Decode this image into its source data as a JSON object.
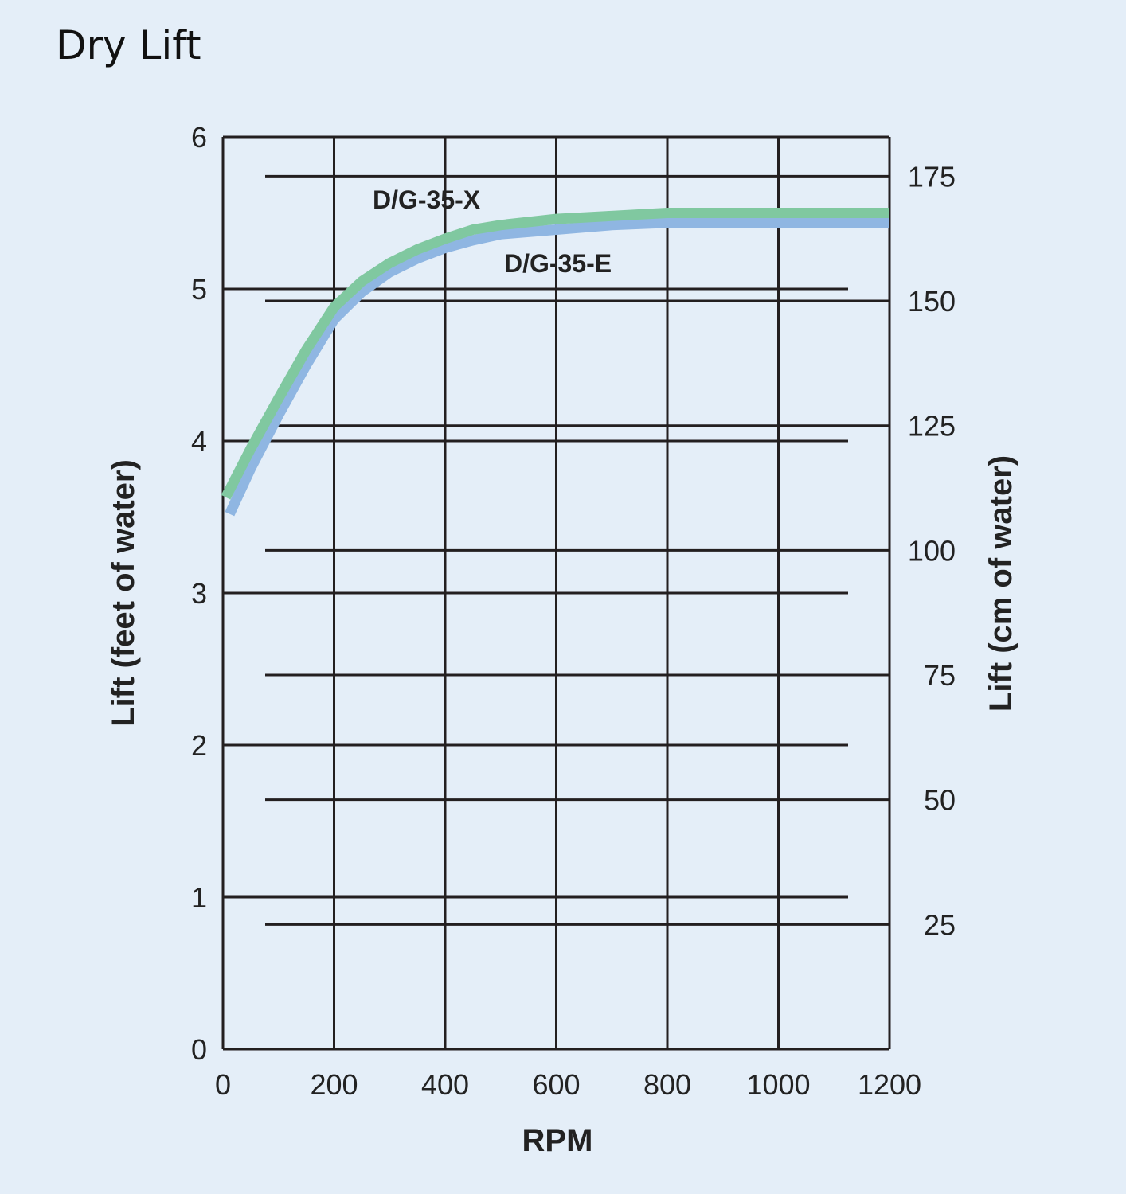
{
  "chart_data": {
    "type": "line",
    "title": "Dry Lift",
    "xlabel": "RPM",
    "ylabel": "Lift (feet of water)",
    "y2label": "Lift (cm of water)",
    "xlim": [
      0,
      1200
    ],
    "ylim": [
      0,
      6
    ],
    "y2lim": [
      0,
      182.88
    ],
    "xticks": [
      "0",
      "200",
      "400",
      "600",
      "800",
      "1000",
      "1200"
    ],
    "yticks": [
      "0",
      "1",
      "2",
      "3",
      "4",
      "5",
      "6"
    ],
    "y2ticks": [
      "25",
      "50",
      "75",
      "100",
      "125",
      "150",
      "175"
    ],
    "grid": true,
    "series": [
      {
        "name": "D/G-35-X",
        "color": "#80c8a0",
        "x": [
          5,
          50,
          100,
          150,
          200,
          250,
          300,
          350,
          400,
          450,
          500,
          600,
          700,
          800,
          1200
        ],
        "y": [
          3.63,
          3.95,
          4.28,
          4.6,
          4.88,
          5.05,
          5.17,
          5.26,
          5.33,
          5.39,
          5.42,
          5.46,
          5.48,
          5.5,
          5.5
        ]
      },
      {
        "name": "D/G-35-E",
        "color": "#8fb6e2",
        "x": [
          12,
          50,
          100,
          150,
          200,
          250,
          300,
          350,
          400,
          450,
          500,
          600,
          700,
          800,
          1200
        ],
        "y": [
          3.52,
          3.82,
          4.17,
          4.5,
          4.8,
          4.98,
          5.11,
          5.2,
          5.27,
          5.32,
          5.36,
          5.39,
          5.42,
          5.435,
          5.435
        ]
      }
    ]
  }
}
